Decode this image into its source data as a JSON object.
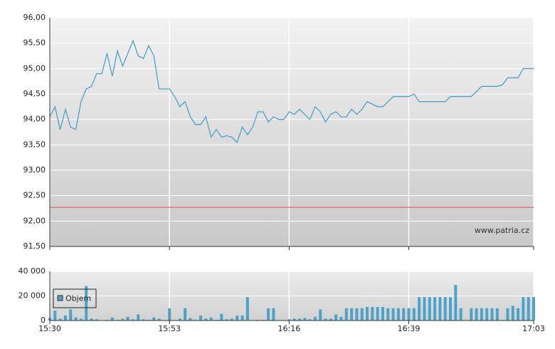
{
  "chart_data": [
    {
      "type": "line",
      "x": [
        0,
        1,
        2,
        3,
        4,
        5,
        6,
        7,
        8,
        9,
        10,
        11,
        12,
        13,
        14,
        15,
        16,
        17,
        18,
        19,
        20,
        21,
        22,
        23,
        24,
        25,
        26,
        27,
        28,
        29,
        30,
        31,
        32,
        33,
        34,
        35,
        36,
        37,
        38,
        39,
        40,
        41,
        42,
        43,
        44,
        45,
        46,
        47,
        48,
        49,
        50,
        51,
        52,
        53,
        54,
        55,
        56,
        57,
        58,
        59,
        60,
        61,
        62,
        63,
        64,
        65,
        66,
        67,
        68,
        69,
        70,
        71,
        72,
        73,
        74,
        75,
        76,
        77,
        78,
        79,
        80,
        81,
        82,
        83,
        84,
        85,
        86,
        87,
        88,
        89,
        90,
        91,
        92,
        93
      ],
      "series": [
        {
          "color": "#4ba3c7",
          "values": [
            94.05,
            94.25,
            93.8,
            94.2,
            93.85,
            93.8,
            94.35,
            94.6,
            94.65,
            94.9,
            94.9,
            95.3,
            94.85,
            95.35,
            95.05,
            95.3,
            95.55,
            95.25,
            95.2,
            95.45,
            95.25,
            94.6,
            94.6,
            94.6,
            94.45,
            94.25,
            94.35,
            94.05,
            93.9,
            93.9,
            94.05,
            93.65,
            93.8,
            93.65,
            93.68,
            93.65,
            93.55,
            93.85,
            93.7,
            93.85,
            94.15,
            94.15,
            93.95,
            94.05,
            94.0,
            94.0,
            94.15,
            94.1,
            94.2,
            94.1,
            94.0,
            94.25,
            94.15,
            93.95,
            94.1,
            94.15,
            94.05,
            94.05,
            94.2,
            94.1,
            94.2,
            94.35,
            94.3,
            94.25,
            94.25,
            94.35,
            94.45,
            94.45,
            94.45,
            94.45,
            94.5,
            94.35,
            94.35,
            94.35,
            94.35,
            94.35,
            94.35,
            94.45,
            94.45,
            94.45,
            94.45,
            94.45,
            94.55,
            94.65,
            94.65,
            94.65,
            94.65,
            94.68,
            94.82,
            94.82,
            94.82,
            95.0,
            95.0,
            95.0
          ]
        }
      ],
      "xlim": [
        0,
        93
      ],
      "xticks": [
        0,
        23,
        46,
        69,
        93
      ],
      "ylim": [
        91.5,
        96
      ],
      "yticks": [
        {
          "value": 96,
          "label": "96,00"
        },
        {
          "value": 95.5,
          "label": "95,50"
        },
        {
          "value": 95,
          "label": "95,00"
        },
        {
          "value": 94.5,
          "label": "94,50"
        },
        {
          "value": 94,
          "label": "94,00"
        },
        {
          "value": 93.5,
          "label": "93,50"
        },
        {
          "value": 93,
          "label": "93,00"
        },
        {
          "value": 92.5,
          "label": "92,50"
        },
        {
          "value": 92,
          "label": "92,00"
        },
        {
          "value": 91.5,
          "label": "91,50"
        }
      ],
      "reference_line": {
        "value": 92.27,
        "color": "#e05050"
      },
      "watermark": "www.patria.cz",
      "grid": true
    },
    {
      "type": "bar",
      "x": [
        0,
        1,
        2,
        3,
        4,
        5,
        6,
        7,
        8,
        9,
        10,
        11,
        12,
        13,
        14,
        15,
        16,
        17,
        18,
        19,
        20,
        21,
        22,
        23,
        24,
        25,
        26,
        27,
        28,
        29,
        30,
        31,
        32,
        33,
        34,
        35,
        36,
        37,
        38,
        39,
        40,
        41,
        42,
        43,
        44,
        45,
        46,
        47,
        48,
        49,
        50,
        51,
        52,
        53,
        54,
        55,
        56,
        57,
        58,
        59,
        60,
        61,
        62,
        63,
        64,
        65,
        66,
        67,
        68,
        69,
        70,
        71,
        72,
        73,
        74,
        75,
        76,
        77,
        78,
        79,
        80,
        81,
        82,
        83,
        84,
        85,
        86,
        87,
        88,
        89,
        90,
        91,
        92,
        93
      ],
      "series": [
        {
          "name": "Objem",
          "color": "#4ba3c7",
          "values": [
            2000,
            8000,
            1500,
            4000,
            9000,
            2500,
            1500,
            28000,
            1500,
            1000,
            0,
            500,
            2500,
            500,
            1500,
            3000,
            1000,
            5000,
            1000,
            500,
            2500,
            1500,
            0,
            10000,
            0,
            1500,
            10000,
            2000,
            500,
            4000,
            1500,
            2500,
            500,
            5500,
            1000,
            1500,
            4000,
            4000,
            19000,
            0,
            500,
            500,
            10000,
            10000,
            0,
            0,
            1000,
            1500,
            1500,
            2000,
            1000,
            3000,
            9000,
            1500,
            1500,
            5000,
            3000,
            10000,
            10000,
            10000,
            10000,
            11000,
            11000,
            11000,
            11000,
            10000,
            10000,
            10000,
            10000,
            10000,
            10000,
            19000,
            19000,
            19000,
            19000,
            19000,
            19000,
            19000,
            29000,
            10000,
            0,
            10000,
            10000,
            10000,
            10000,
            10000,
            10000,
            0,
            10000,
            12000,
            10000,
            19000,
            19000,
            19000
          ]
        }
      ],
      "xlim": [
        0,
        93
      ],
      "xticks": [
        {
          "value": 0,
          "label": "15:30"
        },
        {
          "value": 23,
          "label": "15:53"
        },
        {
          "value": 46,
          "label": "16:16"
        },
        {
          "value": 69,
          "label": "16:39"
        },
        {
          "value": 93,
          "label": "17:03"
        }
      ],
      "ylim": [
        0,
        40000
      ],
      "yticks": [
        0,
        {
          "value": 20000,
          "label": "20 000"
        },
        {
          "value": 40000,
          "label": "40 000"
        }
      ],
      "legend": "left",
      "grid": true
    }
  ]
}
